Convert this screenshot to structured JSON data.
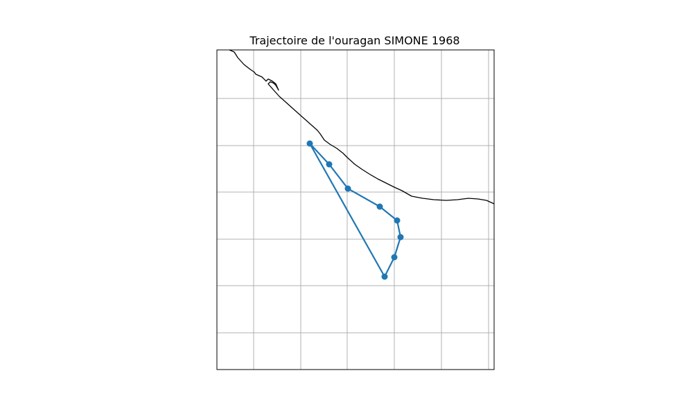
{
  "title": "Trajectoire de l'ouragan SIMONE 1968",
  "colors": {
    "track": "#1f77b4",
    "coastline": "#000000",
    "grid": "#b0b0b0",
    "frame": "#000000"
  },
  "chart_data": {
    "type": "map",
    "title": "Trajectoire de l'ouragan SIMONE 1968",
    "grid": true,
    "tick_labels_visible": false,
    "track": {
      "marker": "circle",
      "line": "solid",
      "point_count": 8
    }
  }
}
